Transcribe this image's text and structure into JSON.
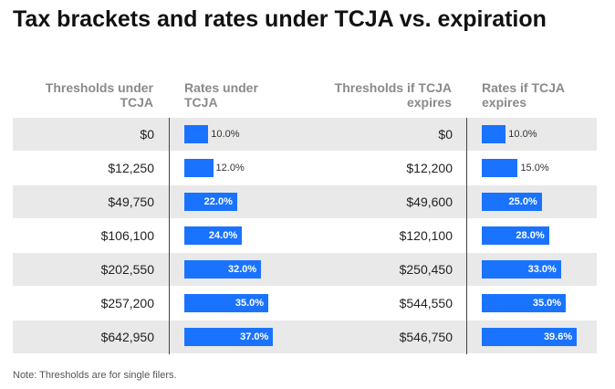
{
  "title": "Tax brackets and rates under TCJA vs. expiration",
  "columns": {
    "thresholds_tcja": "Thresholds under TCJA",
    "rates_tcja": "Rates under TCJA",
    "thresholds_expire": "Thresholds if TCJA expires",
    "rates_expire": "Rates if TCJA expires"
  },
  "note": "Note: Thresholds are for single filers.",
  "colors": {
    "bar": "#1a73ff",
    "shade": "#e9e9ea"
  },
  "chart_data": {
    "type": "table",
    "title": "Tax brackets and rates under TCJA vs. expiration",
    "rows": [
      {
        "threshold_tcja": "$0",
        "rate_tcja": 10.0,
        "rate_tcja_label": "10.0%",
        "threshold_expire": "$0",
        "rate_expire": 10.0,
        "rate_expire_label": "10.0%"
      },
      {
        "threshold_tcja": "$12,250",
        "rate_tcja": 12.0,
        "rate_tcja_label": "12.0%",
        "threshold_expire": "$12,200",
        "rate_expire": 15.0,
        "rate_expire_label": "15.0%"
      },
      {
        "threshold_tcja": "$49,750",
        "rate_tcja": 22.0,
        "rate_tcja_label": "22.0%",
        "threshold_expire": "$49,600",
        "rate_expire": 25.0,
        "rate_expire_label": "25.0%"
      },
      {
        "threshold_tcja": "$106,100",
        "rate_tcja": 24.0,
        "rate_tcja_label": "24.0%",
        "threshold_expire": "$120,100",
        "rate_expire": 28.0,
        "rate_expire_label": "28.0%"
      },
      {
        "threshold_tcja": "$202,550",
        "rate_tcja": 32.0,
        "rate_tcja_label": "32.0%",
        "threshold_expire": "$250,450",
        "rate_expire": 33.0,
        "rate_expire_label": "33.0%"
      },
      {
        "threshold_tcja": "$257,200",
        "rate_tcja": 35.0,
        "rate_tcja_label": "35.0%",
        "threshold_expire": "$544,550",
        "rate_expire": 35.0,
        "rate_expire_label": "35.0%"
      },
      {
        "threshold_tcja": "$642,950",
        "rate_tcja": 37.0,
        "rate_tcja_label": "37.0%",
        "threshold_expire": "$546,750",
        "rate_expire": 39.6,
        "rate_expire_label": "39.6%"
      }
    ]
  }
}
